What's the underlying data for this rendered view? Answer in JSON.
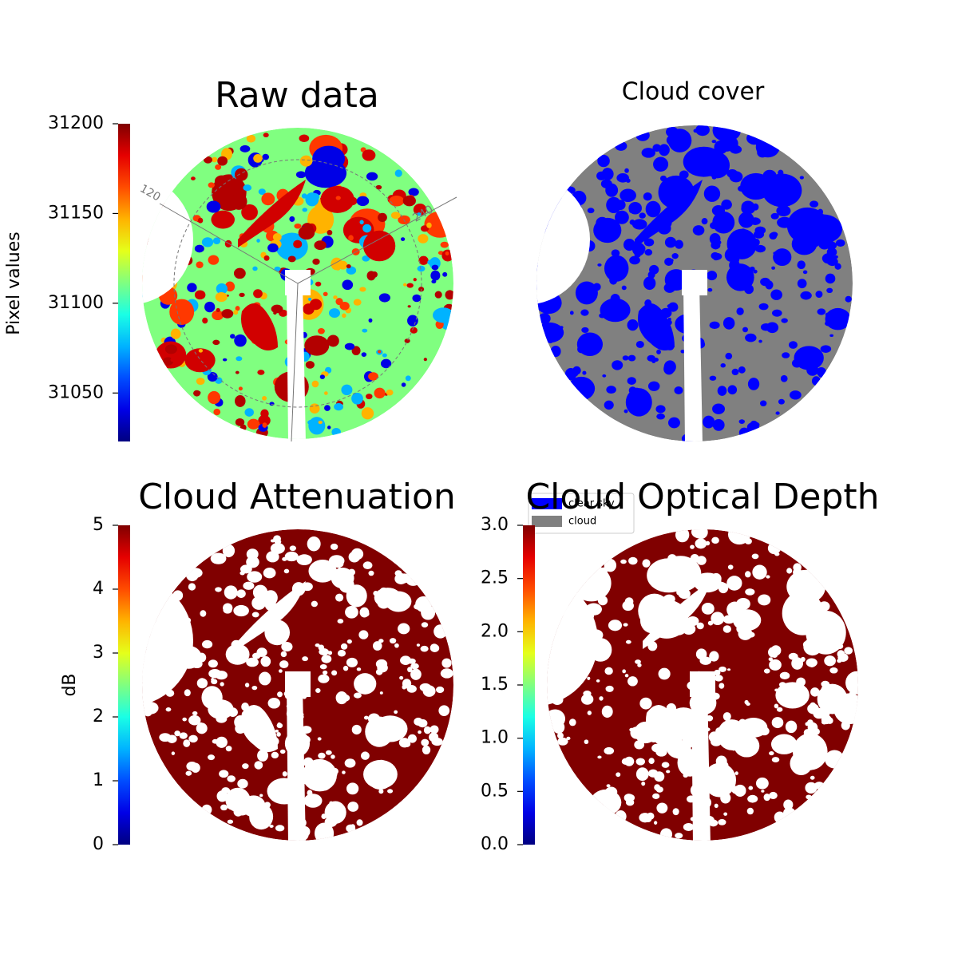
{
  "chart_data": [
    {
      "type": "image",
      "title": "Raw data",
      "colorbar": {
        "label": "Pixel values",
        "ylim": [
          31023,
          31200
        ],
        "yticks": [
          31050,
          31100,
          31150,
          31200
        ],
        "colormap": "jet"
      },
      "annotations": [
        "120",
        "240"
      ]
    },
    {
      "type": "image",
      "title": "Cloud cover",
      "series": [
        {
          "name": "clear sky",
          "color": "#0000ff"
        },
        {
          "name": "cloud",
          "color": "#808080"
        }
      ]
    },
    {
      "type": "image",
      "title": "Cloud Attenuation",
      "colorbar": {
        "label": "dB",
        "ylim": [
          0,
          5
        ],
        "yticks": [
          0,
          1,
          2,
          3,
          4,
          5
        ],
        "colormap": "jet"
      }
    },
    {
      "type": "image",
      "title": "Cloud Optical Depth",
      "colorbar": {
        "ylim": [
          0,
          3
        ],
        "yticks": [
          {
            "value": 0,
            "label": "0.0"
          },
          0.5,
          {
            "value": 1,
            "label": "1.0"
          },
          1.5,
          {
            "value": 2,
            "label": "2.0"
          },
          2.5,
          {
            "value": 3,
            "label": "3.0"
          }
        ],
        "colormap": "jet"
      }
    }
  ]
}
